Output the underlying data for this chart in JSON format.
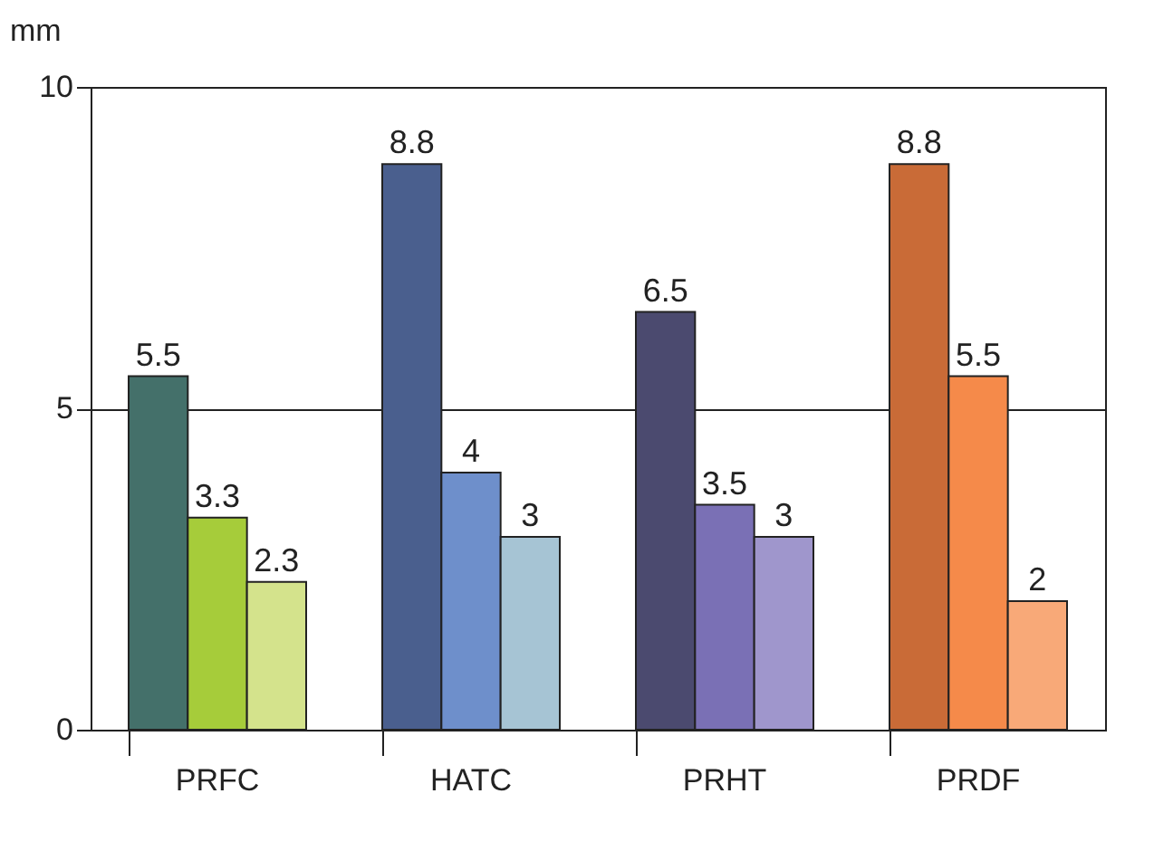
{
  "chart_data": {
    "type": "bar",
    "ylabel": "mm",
    "categories": [
      "PRFC",
      "HATC",
      "PRHT",
      "PRDF"
    ],
    "series": [
      {
        "colors": [
          "#44706a",
          "#4a5f8e",
          "#4b4a6f",
          "#c96b37"
        ],
        "values": [
          5.5,
          8.8,
          6.5,
          8.8
        ]
      },
      {
        "colors": [
          "#a6cc3a",
          "#6e8fcb",
          "#7a70b5",
          "#f58a4a"
        ],
        "values": [
          3.3,
          4,
          3.5,
          5.5
        ]
      },
      {
        "colors": [
          "#d4e38c",
          "#a6c4d4",
          "#9f96cc",
          "#f8a978"
        ],
        "values": [
          2.3,
          3,
          3,
          2
        ]
      }
    ],
    "ylim": [
      0,
      10
    ],
    "yticks": [
      0,
      5,
      10
    ],
    "grid": "y",
    "data_labels": true
  }
}
